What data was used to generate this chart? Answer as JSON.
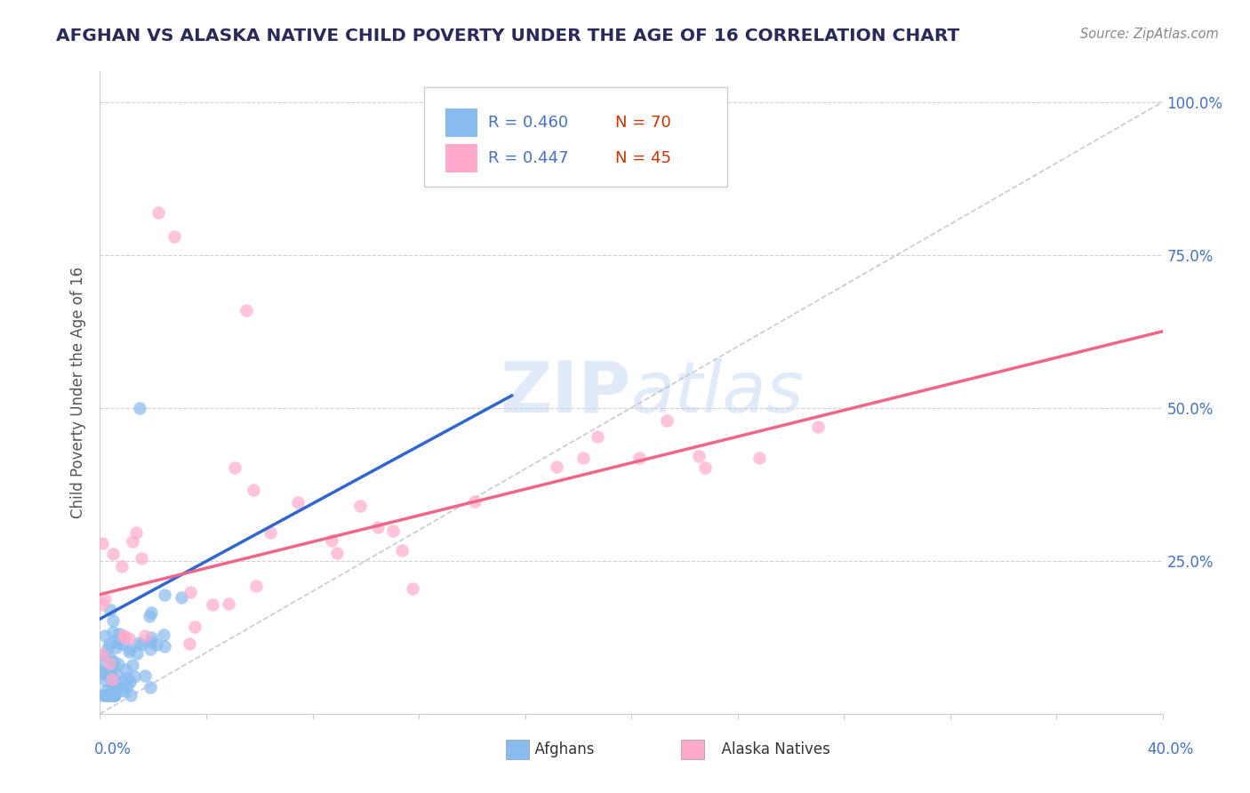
{
  "title": "AFGHAN VS ALASKA NATIVE CHILD POVERTY UNDER THE AGE OF 16 CORRELATION CHART",
  "source": "Source: ZipAtlas.com",
  "ylabel": "Child Poverty Under the Age of 16",
  "xlim": [
    0,
    0.4
  ],
  "ylim": [
    0,
    1.05
  ],
  "legend_r1": "R = 0.460",
  "legend_n1": "N = 70",
  "legend_r2": "R = 0.447",
  "legend_n2": "N = 45",
  "legend_label1": "Afghans",
  "legend_label2": "Alaska Natives",
  "color_blue": "#88bbee",
  "color_pink": "#ffaacc",
  "color_blue_line": "#3366cc",
  "color_pink_line": "#ee6688",
  "watermark_zip": "ZIP",
  "watermark_atlas": "atlas",
  "title_color": "#2a2a5a",
  "source_color": "#888888",
  "ytick_color": "#4472c4",
  "background_color": "#ffffff"
}
